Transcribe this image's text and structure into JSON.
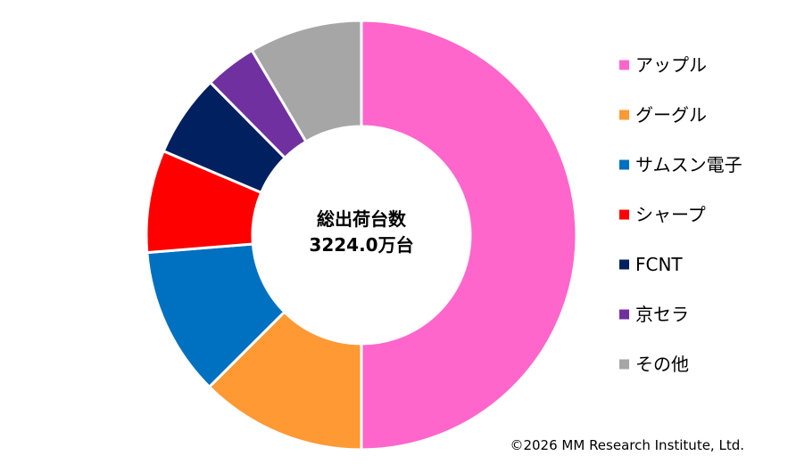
{
  "chart_data": {
    "type": "pie",
    "style": "donut",
    "center_title": "総出荷台数",
    "center_value": "3224.0万台",
    "start_angle_deg": 0,
    "direction": "clockwise",
    "legend_placement": "right",
    "series": [
      {
        "name": "アップル",
        "value": 50.0,
        "color": "#FF66CC"
      },
      {
        "name": "グーグル",
        "value": 12.5,
        "color": "#FF9933"
      },
      {
        "name": "サムスン電子",
        "value": 11.2,
        "color": "#0070C0"
      },
      {
        "name": "シャープ",
        "value": 7.7,
        "color": "#FF0000"
      },
      {
        "name": "FCNT",
        "value": 6.2,
        "color": "#002060"
      },
      {
        "name": "京セラ",
        "value": 3.9,
        "color": "#7030A0"
      },
      {
        "name": "その他",
        "value": 8.5,
        "color": "#A6A6A6"
      }
    ]
  },
  "footer": {
    "copyright": "©2026 MM Research Institute, Ltd."
  }
}
